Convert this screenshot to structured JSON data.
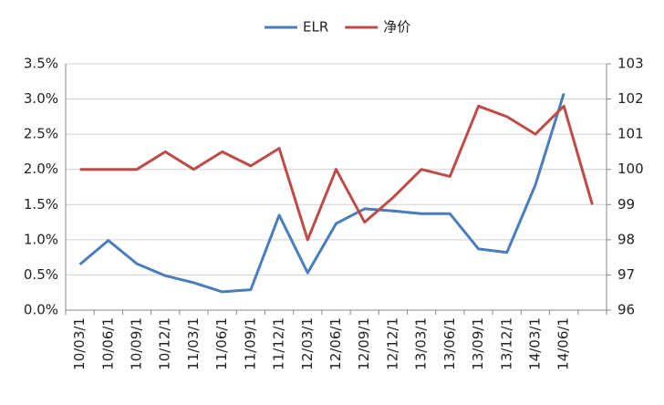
{
  "chart_data": {
    "type": "line",
    "categories": [
      "10/03/1",
      "10/06/1",
      "10/09/1",
      "10/12/1",
      "11/03/1",
      "11/06/1",
      "11/09/1",
      "11/12/1",
      "12/03/1",
      "12/06/1",
      "12/09/1",
      "12/12/1",
      "13/03/1",
      "13/06/1",
      "13/09/1",
      "13/12/1",
      "14/03/1",
      "14/06/1",
      null
    ],
    "series": [
      {
        "name": "ELR",
        "color": "#4a7ebb",
        "axis": "y",
        "values": [
          0.65,
          0.99,
          0.66,
          0.49,
          0.39,
          0.26,
          0.29,
          1.35,
          0.53,
          1.23,
          1.44,
          1.41,
          1.37,
          1.37,
          0.87,
          0.82,
          1.78,
          3.08,
          null
        ]
      },
      {
        "name": "净价",
        "color": "#be4b48",
        "axis": "y2",
        "values": [
          100,
          100,
          100,
          100.5,
          100,
          100.5,
          100.1,
          100.6,
          98,
          100,
          98.5,
          99.2,
          100,
          99.8,
          101.8,
          101.5,
          101,
          101.8,
          99
        ]
      }
    ],
    "ylim": [
      0,
      3.5
    ],
    "yticks": [
      {
        "value": 0,
        "label": "0.0%"
      },
      {
        "value": 0.5,
        "label": "0.5%"
      },
      {
        "value": 1,
        "label": "1.0%"
      },
      {
        "value": 1.5,
        "label": "1.5%"
      },
      {
        "value": 2,
        "label": "2.0%"
      },
      {
        "value": 2.5,
        "label": "2.5%"
      },
      {
        "value": 3,
        "label": "3.0%"
      },
      {
        "value": 3.5,
        "label": "3.5%"
      }
    ],
    "y2lim": [
      96,
      103
    ],
    "y2ticks": [
      96,
      97,
      98,
      99,
      100,
      101,
      102,
      103
    ],
    "grid": true,
    "legend": "top"
  }
}
